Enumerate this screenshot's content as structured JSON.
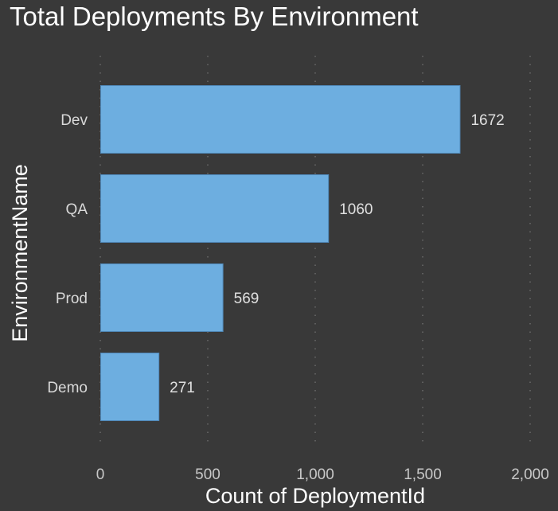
{
  "chart_data": {
    "type": "bar",
    "orientation": "horizontal",
    "title": "Total Deployments By Environment",
    "xlabel": "Count of DeploymentId",
    "ylabel": "EnvironmentName",
    "categories": [
      "Dev",
      "QA",
      "Prod",
      "Demo"
    ],
    "values": [
      1672,
      1060,
      569,
      271
    ],
    "data_labels": [
      "1672",
      "1060",
      "569",
      "271"
    ],
    "xlim": [
      0,
      2000
    ],
    "xticks": [
      0,
      500,
      1000,
      1500,
      2000
    ],
    "xtick_labels": [
      "0",
      "500",
      "1,000",
      "1,500",
      "2,000"
    ],
    "grid": "vertical-dotted",
    "legend": "none",
    "colors": {
      "bar": "#6daee0",
      "bar_border": "#4f86b5",
      "background": "#393939",
      "grid": "#6a6a6a"
    }
  }
}
